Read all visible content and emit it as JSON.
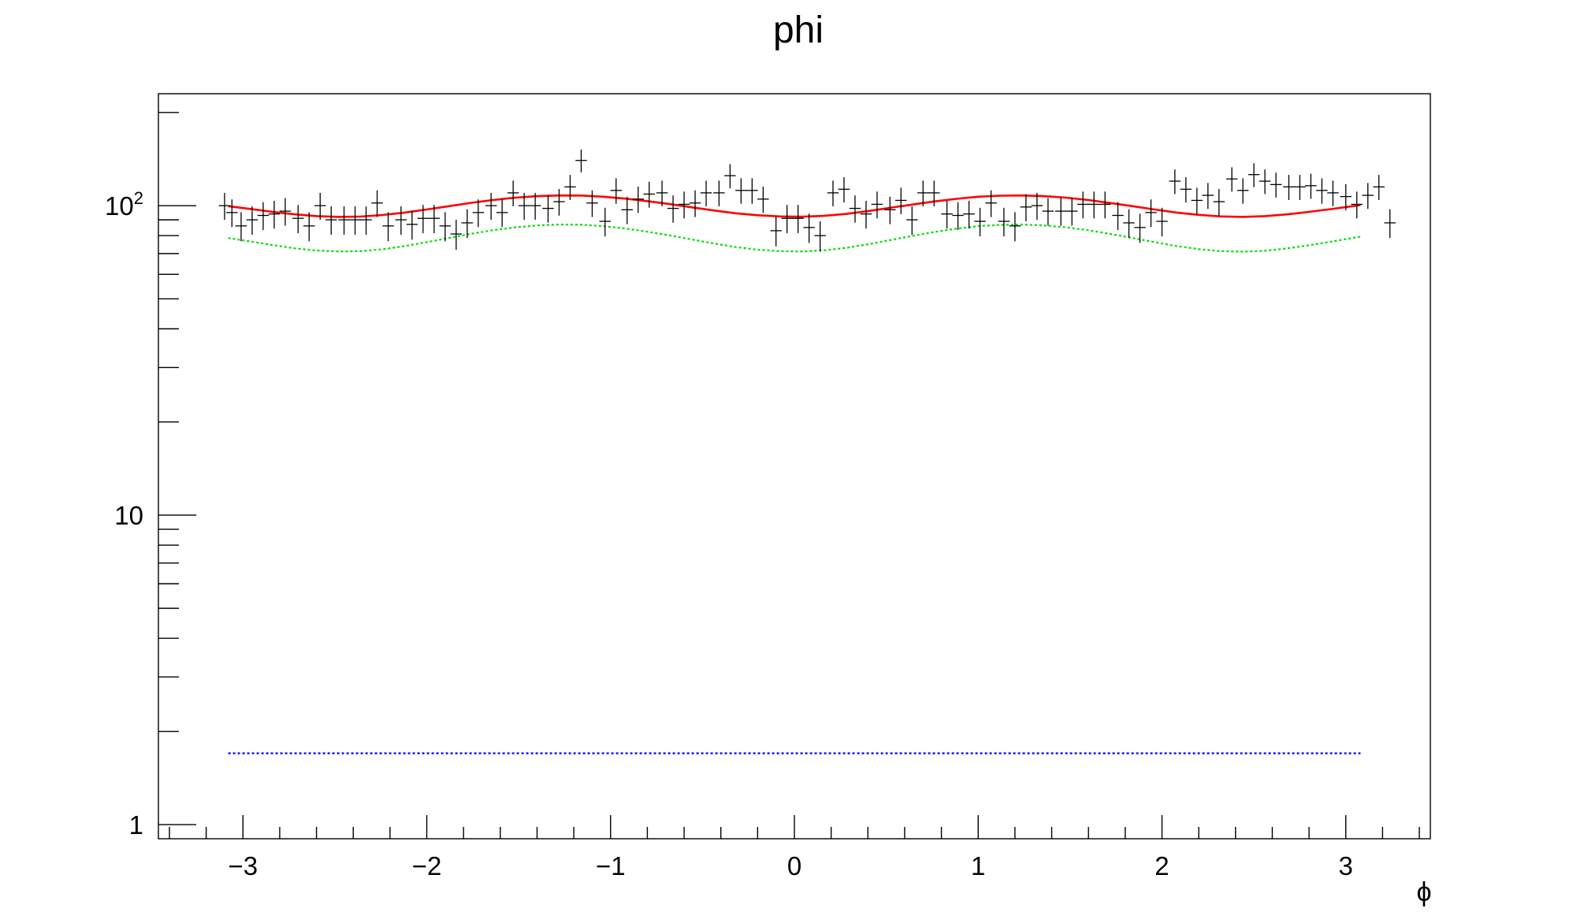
{
  "chart_data": {
    "type": "scatter",
    "title": "phi",
    "xlabel": "ϕ",
    "ylabel": "",
    "xlim": [
      -3.46,
      3.46
    ],
    "ylim": [
      0.9,
      230
    ],
    "yscale": "log",
    "grid": false,
    "legend": "none",
    "x_ticks": [
      {
        "value": -3,
        "label": "−3"
      },
      {
        "value": -2,
        "label": "−2"
      },
      {
        "value": -1,
        "label": "−1"
      },
      {
        "value": 0,
        "label": "0"
      },
      {
        "value": 1,
        "label": "1"
      },
      {
        "value": 2,
        "label": "2"
      },
      {
        "value": 3,
        "label": "3"
      }
    ],
    "y_ticks": [
      {
        "value": 1,
        "label": "1"
      },
      {
        "value": 10,
        "label": "10"
      },
      {
        "value": 100,
        "label": "10",
        "sup": "2"
      }
    ],
    "points": [
      {
        "x": -3.1,
        "y": 100
      },
      {
        "x": -3.06,
        "y": 95
      },
      {
        "x": -3.01,
        "y": 86
      },
      {
        "x": -2.95,
        "y": 90
      },
      {
        "x": -2.89,
        "y": 93
      },
      {
        "x": -2.83,
        "y": 94
      },
      {
        "x": -2.77,
        "y": 96
      },
      {
        "x": -2.7,
        "y": 91
      },
      {
        "x": -2.64,
        "y": 86
      },
      {
        "x": -2.58,
        "y": 100
      },
      {
        "x": -2.52,
        "y": 90
      },
      {
        "x": -2.45,
        "y": 90
      },
      {
        "x": -2.39,
        "y": 90
      },
      {
        "x": -2.33,
        "y": 90
      },
      {
        "x": -2.27,
        "y": 102
      },
      {
        "x": -2.21,
        "y": 86
      },
      {
        "x": -2.14,
        "y": 90
      },
      {
        "x": -2.08,
        "y": 87
      },
      {
        "x": -2.02,
        "y": 91
      },
      {
        "x": -1.96,
        "y": 91
      },
      {
        "x": -1.9,
        "y": 86
      },
      {
        "x": -1.84,
        "y": 81
      },
      {
        "x": -1.78,
        "y": 88
      },
      {
        "x": -1.72,
        "y": 95
      },
      {
        "x": -1.65,
        "y": 100
      },
      {
        "x": -1.59,
        "y": 95
      },
      {
        "x": -1.53,
        "y": 110
      },
      {
        "x": -1.47,
        "y": 100
      },
      {
        "x": -1.41,
        "y": 100
      },
      {
        "x": -1.34,
        "y": 98
      },
      {
        "x": -1.28,
        "y": 103
      },
      {
        "x": -1.22,
        "y": 115
      },
      {
        "x": -1.16,
        "y": 140
      },
      {
        "x": -1.1,
        "y": 102
      },
      {
        "x": -1.03,
        "y": 89
      },
      {
        "x": -0.97,
        "y": 112
      },
      {
        "x": -0.91,
        "y": 97
      },
      {
        "x": -0.85,
        "y": 105
      },
      {
        "x": -0.79,
        "y": 109
      },
      {
        "x": -0.72,
        "y": 110
      },
      {
        "x": -0.66,
        "y": 98
      },
      {
        "x": -0.6,
        "y": 101
      },
      {
        "x": -0.54,
        "y": 102
      },
      {
        "x": -0.48,
        "y": 110
      },
      {
        "x": -0.41,
        "y": 110
      },
      {
        "x": -0.35,
        "y": 125
      },
      {
        "x": -0.29,
        "y": 112
      },
      {
        "x": -0.23,
        "y": 112
      },
      {
        "x": -0.17,
        "y": 105
      },
      {
        "x": -0.1,
        "y": 83
      },
      {
        "x": -0.04,
        "y": 91
      },
      {
        "x": 0.02,
        "y": 91
      },
      {
        "x": 0.08,
        "y": 85
      },
      {
        "x": 0.14,
        "y": 80
      },
      {
        "x": 0.21,
        "y": 110
      },
      {
        "x": 0.27,
        "y": 113
      },
      {
        "x": 0.33,
        "y": 98
      },
      {
        "x": 0.39,
        "y": 94
      },
      {
        "x": 0.45,
        "y": 101
      },
      {
        "x": 0.52,
        "y": 97
      },
      {
        "x": 0.58,
        "y": 104
      },
      {
        "x": 0.64,
        "y": 90
      },
      {
        "x": 0.7,
        "y": 110
      },
      {
        "x": 0.76,
        "y": 110
      },
      {
        "x": 0.83,
        "y": 94
      },
      {
        "x": 0.89,
        "y": 93
      },
      {
        "x": 0.95,
        "y": 94
      },
      {
        "x": 1.01,
        "y": 89
      },
      {
        "x": 1.07,
        "y": 102
      },
      {
        "x": 1.14,
        "y": 89
      },
      {
        "x": 1.2,
        "y": 86
      },
      {
        "x": 1.26,
        "y": 99
      },
      {
        "x": 1.32,
        "y": 100
      },
      {
        "x": 1.38,
        "y": 96
      },
      {
        "x": 1.45,
        "y": 96
      },
      {
        "x": 1.51,
        "y": 96
      },
      {
        "x": 1.57,
        "y": 101
      },
      {
        "x": 1.63,
        "y": 101
      },
      {
        "x": 1.69,
        "y": 101
      },
      {
        "x": 1.76,
        "y": 93
      },
      {
        "x": 1.82,
        "y": 88
      },
      {
        "x": 1.88,
        "y": 85
      },
      {
        "x": 1.94,
        "y": 95
      },
      {
        "x": 2.0,
        "y": 89
      },
      {
        "x": 2.07,
        "y": 120
      },
      {
        "x": 2.13,
        "y": 113
      },
      {
        "x": 2.19,
        "y": 104
      },
      {
        "x": 2.25,
        "y": 108
      },
      {
        "x": 2.31,
        "y": 103
      },
      {
        "x": 2.38,
        "y": 122
      },
      {
        "x": 2.44,
        "y": 112
      },
      {
        "x": 2.5,
        "y": 126
      },
      {
        "x": 2.56,
        "y": 120
      },
      {
        "x": 2.62,
        "y": 117
      },
      {
        "x": 2.69,
        "y": 115
      },
      {
        "x": 2.75,
        "y": 115
      },
      {
        "x": 2.81,
        "y": 116
      },
      {
        "x": 2.87,
        "y": 112
      },
      {
        "x": 2.93,
        "y": 110
      },
      {
        "x": 3.0,
        "y": 107
      },
      {
        "x": 3.06,
        "y": 101
      },
      {
        "x": 3.12,
        "y": 108
      },
      {
        "x": 3.18,
        "y": 115
      },
      {
        "x": 3.24,
        "y": 88
      }
    ],
    "series": [
      {
        "color": "#ff0000",
        "style": "solid",
        "x": [
          -3.08,
          -2.96,
          -2.84,
          -2.72,
          -2.6,
          -2.48,
          -2.36,
          -2.24,
          -2.12,
          -2.0,
          -1.88,
          -1.76,
          -1.64,
          -1.52,
          -1.4,
          -1.28,
          -1.16,
          -1.04,
          -0.92,
          -0.8,
          -0.68,
          -0.56,
          -0.44,
          -0.32,
          -0.2,
          -0.08,
          0.04,
          0.16,
          0.28,
          0.4,
          0.52,
          0.64,
          0.76,
          0.88,
          1.0,
          1.12,
          1.24,
          1.36,
          1.48,
          1.6,
          1.72,
          1.84,
          1.96,
          2.08,
          2.2,
          2.32,
          2.44,
          2.56,
          2.68,
          2.8,
          2.92,
          3.04,
          3.08
        ],
        "y": [
          99.6,
          97.6,
          95.5,
          93.8,
          92.5,
          92.0,
          92.2,
          93.3,
          95.0,
          97.2,
          99.6,
          102.1,
          104.3,
          106.1,
          107.3,
          107.9,
          107.8,
          106.9,
          105.4,
          103.4,
          101.2,
          98.8,
          96.5,
          94.5,
          93.1,
          92.3,
          92.1,
          92.7,
          94.0,
          96.0,
          98.4,
          100.8,
          103.2,
          105.2,
          106.9,
          107.7,
          107.9,
          107.3,
          106.1,
          104.3,
          102.0,
          99.6,
          97.2,
          95.0,
          93.4,
          92.3,
          92.0,
          92.5,
          93.7,
          95.5,
          97.5,
          99.7,
          100.4
        ]
      },
      {
        "color": "#00dd00",
        "style": "dotted",
        "x": [
          -3.08,
          -2.96,
          -2.84,
          -2.72,
          -2.6,
          -2.48,
          -2.36,
          -2.24,
          -2.12,
          -2.0,
          -1.88,
          -1.76,
          -1.64,
          -1.52,
          -1.4,
          -1.28,
          -1.16,
          -1.04,
          -0.92,
          -0.8,
          -0.68,
          -0.56,
          -0.44,
          -0.32,
          -0.2,
          -0.08,
          0.04,
          0.16,
          0.28,
          0.4,
          0.52,
          0.64,
          0.76,
          0.88,
          1.0,
          1.12,
          1.24,
          1.36,
          1.48,
          1.6,
          1.72,
          1.84,
          1.96,
          2.08,
          2.2,
          2.32,
          2.44,
          2.56,
          2.68,
          2.8,
          2.92,
          3.04,
          3.08
        ],
        "y": [
          78.6,
          76.6,
          74.6,
          72.8,
          71.6,
          71.1,
          71.3,
          72.3,
          74.0,
          76.2,
          78.6,
          81.1,
          83.3,
          85.1,
          86.3,
          86.9,
          86.8,
          85.9,
          84.4,
          82.4,
          80.2,
          77.8,
          75.5,
          73.5,
          72.1,
          71.3,
          71.1,
          71.7,
          73.0,
          75.0,
          77.4,
          79.8,
          82.2,
          84.2,
          85.9,
          86.7,
          86.9,
          86.3,
          85.1,
          83.3,
          81.0,
          78.6,
          76.2,
          74.0,
          72.4,
          71.3,
          71.0,
          71.5,
          72.7,
          74.5,
          76.5,
          78.7,
          79.4
        ]
      },
      {
        "color": "#0000ff",
        "style": "dotted",
        "x": [
          -3.08,
          3.08
        ],
        "y": [
          1.7,
          1.7
        ]
      }
    ]
  }
}
